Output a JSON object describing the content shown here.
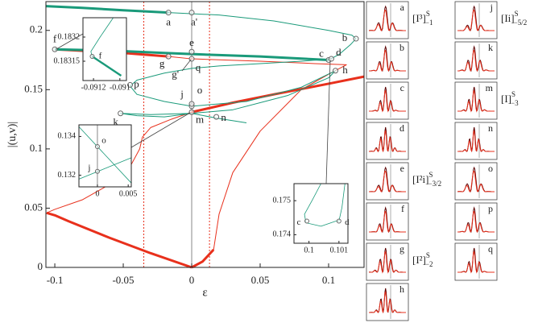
{
  "chart_data": [
    {
      "type": "line",
      "xlabel": "ε",
      "ylabel": "|(u,v)|",
      "xlim": [
        -0.1065,
        0.1259
      ],
      "ylim": [
        0,
        0.2243
      ],
      "xticks": [
        -0.1,
        -0.05,
        0,
        0.05,
        0.1
      ],
      "yticks": [
        0,
        0.05,
        0.1,
        0.15,
        0.2
      ],
      "vlines": [
        {
          "x": -0.035,
          "color": "#e8301c",
          "style": "dotted"
        },
        {
          "x": 0.013,
          "color": "#e8301c",
          "style": "dotted"
        },
        {
          "x": 0,
          "color": "#888888",
          "style": "solid"
        }
      ],
      "series": [
        {
          "color": "#e8301c",
          "linewidth": 3,
          "x": [
            0,
            -0.03,
            -0.06,
            -0.09,
            -0.1,
            -0.106
          ],
          "values": [
            0,
            0.012,
            0.025,
            0.039,
            0.044,
            0.046
          ]
        },
        {
          "color": "#e8301c",
          "linewidth": 1,
          "x": [
            -0.106,
            -0.1,
            -0.08,
            -0.06,
            -0.045,
            -0.038,
            -0.036,
            -0.03,
            -0.015,
            0
          ],
          "values": [
            0.046,
            0.049,
            0.057,
            0.07,
            0.085,
            0.1,
            0.11,
            0.118,
            0.125,
            0.131
          ]
        },
        {
          "color": "#e8301c",
          "linewidth": 3,
          "x": [
            0,
            0.008,
            0.016
          ],
          "values": [
            0,
            0.005,
            0.015
          ]
        },
        {
          "color": "#e8301c",
          "linewidth": 1,
          "x": [
            0.016,
            0.02,
            0.03,
            0.05,
            0.08,
            0.1,
            0.113,
            0.09,
            0.05,
            0,
            -0.017
          ],
          "values": [
            0.015,
            0.045,
            0.08,
            0.115,
            0.15,
            0.163,
            0.171,
            0.172,
            0.174,
            0.176,
            0.178
          ]
        },
        {
          "color": "#e8301c",
          "linewidth": 3,
          "x": [
            -0.017,
            -0.05,
            -0.1
          ],
          "values": [
            0.178,
            0.181,
            0.184
          ]
        },
        {
          "color": "#e8301c",
          "linewidth": 3,
          "x": [
            0.1259,
            0.1,
            0.06,
            0.03,
            0
          ],
          "values": [
            0.161,
            0.155,
            0.146,
            0.139,
            0.131
          ]
        },
        {
          "color": "#1a9a7a",
          "linewidth": 3,
          "x": [
            -0.1065,
            -0.08,
            -0.05,
            -0.017
          ],
          "values": [
            0.2205,
            0.219,
            0.217,
            0.215
          ]
        },
        {
          "color": "#1a9a7a",
          "linewidth": 1,
          "x": [
            -0.017,
            0.02,
            0.06,
            0.1,
            0.117,
            0.12,
            0.116,
            0.108,
            0.1
          ],
          "values": [
            0.215,
            0.213,
            0.208,
            0.2,
            0.196,
            0.193,
            0.188,
            0.18,
            0.175
          ]
        },
        {
          "color": "#1a9a7a",
          "linewidth": 3,
          "x": [
            -0.1,
            -0.06,
            -0.02,
            0,
            0.05,
            0.1
          ],
          "values": [
            0.184,
            0.183,
            0.181,
            0.18,
            0.178,
            0.175
          ]
        },
        {
          "color": "#1a9a7a",
          "linewidth": 1,
          "x": [
            0.102,
            0.08,
            0.05,
            0.02,
            0,
            -0.02,
            -0.04,
            -0.045,
            -0.04,
            -0.02,
            0,
            0.04,
            0.08,
            0.105,
            0.1,
            0.07,
            0.03,
            0,
            -0.03,
            -0.052,
            -0.04,
            -0.02,
            0,
            0.018,
            0.04
          ],
          "values": [
            0.176,
            0.174,
            0.172,
            0.17,
            0.168,
            0.164,
            0.158,
            0.153,
            0.146,
            0.14,
            0.136,
            0.14,
            0.152,
            0.166,
            0.16,
            0.145,
            0.133,
            0.13,
            0.129,
            0.13,
            0.128,
            0.127,
            0.13,
            0.126,
            0.122
          ]
        }
      ],
      "points": [
        {
          "label": "a",
          "x": -0.017,
          "y": 0.215
        },
        {
          "label": "a'",
          "x": 0,
          "y": 0.215
        },
        {
          "label": "b",
          "x": 0.12,
          "y": 0.193
        },
        {
          "label": "c",
          "x": 0.1,
          "y": 0.175
        },
        {
          "label": "d",
          "x": 0.102,
          "y": 0.176
        },
        {
          "label": "e",
          "x": 0,
          "y": 0.182
        },
        {
          "label": "f",
          "x": -0.1,
          "y": 0.184
        },
        {
          "label": "g",
          "x": -0.017,
          "y": 0.178
        },
        {
          "label": "q",
          "x": 0,
          "y": 0.176
        },
        {
          "label": "p",
          "x": -0.045,
          "y": 0.154
        },
        {
          "label": "h",
          "x": 0.105,
          "y": 0.166
        },
        {
          "label": "j",
          "x": 0,
          "y": 0.136
        },
        {
          "label": "o",
          "x": 0,
          "y": 0.138
        },
        {
          "label": "m",
          "x": 0,
          "y": 0.131
        },
        {
          "label": "k",
          "x": -0.052,
          "y": 0.13
        },
        {
          "label": "n",
          "x": 0.018,
          "y": 0.127
        }
      ],
      "annotations": [
        {
          "text": "g'",
          "x": -0.012,
          "y": 0.162
        }
      ]
    },
    {
      "type": "line",
      "xlim": [
        -0.09128,
        -0.09095
      ],
      "ylim": [
        0.18311,
        0.18324
      ],
      "xticks": [
        -0.0912,
        -0.091
      ],
      "yticks": [
        0.1832,
        0.18315
      ],
      "series": [
        {
          "color": "#1a9a7a",
          "linewidth": 1,
          "x": [
            -0.09105,
            -0.09115,
            -0.09122,
            -0.09121
          ],
          "values": [
            0.18324,
            0.1832,
            0.18317,
            0.18316
          ]
        },
        {
          "color": "#1a9a7a",
          "linewidth": 3,
          "x": [
            -0.09121,
            -0.0911,
            -0.09099
          ],
          "values": [
            0.18316,
            0.18314,
            0.18312
          ]
        }
      ],
      "points": [
        {
          "label": "f",
          "x": -0.09121,
          "y": 0.18316
        }
      ]
    },
    {
      "type": "line",
      "xlim": [
        -0.003,
        0.0055
      ],
      "ylim": [
        0.1314,
        0.1346
      ],
      "xticks": [
        0,
        0.005
      ],
      "yticks": [
        0.134,
        0.132
      ],
      "vlines": [
        {
          "x": 0,
          "color": "#888888",
          "style": "solid"
        }
      ],
      "series": [
        {
          "color": "#1a9a7a",
          "linewidth": 1,
          "x": [
            -0.003,
            0.0055
          ],
          "values": [
            0.1345,
            0.1316
          ]
        },
        {
          "color": "#1a9a7a",
          "linewidth": 1,
          "x": [
            -0.003,
            0.0055
          ],
          "values": [
            0.1318,
            0.1329
          ]
        }
      ],
      "points": [
        {
          "label": "j",
          "x": 0,
          "y": 0.1322
        },
        {
          "label": "o",
          "x": 0,
          "y": 0.13348
        }
      ]
    },
    {
      "type": "line",
      "xlim": [
        0.0995,
        0.1013
      ],
      "ylim": [
        0.17375,
        0.1755
      ],
      "xticks": [
        0.1,
        0.101
      ],
      "yticks": [
        0.175,
        0.174
      ],
      "series": [
        {
          "color": "#1a9a7a",
          "linewidth": 1,
          "x": [
            0.1004,
            0.1001,
            0.09985,
            0.0999,
            0.1004,
            0.1009,
            0.101
          ],
          "values": [
            0.1755,
            0.175,
            0.1746,
            0.17435,
            0.17425,
            0.1744,
            0.1744
          ]
        },
        {
          "color": "#1a9a7a",
          "linewidth": 1,
          "x": [
            0.1012,
            0.1011,
            0.101
          ],
          "values": [
            0.1755,
            0.1748,
            0.1744
          ]
        }
      ],
      "points": [
        {
          "label": "c",
          "x": 0.09993,
          "y": 0.1744
        },
        {
          "label": "d",
          "x": 0.101,
          "y": 0.1744
        }
      ]
    }
  ],
  "profile_panels": [
    {
      "letter": "a",
      "tag": {
        "base": "[I³]",
        "sup": "S",
        "sub": "−1"
      }
    },
    {
      "letter": "b"
    },
    {
      "letter": "c"
    },
    {
      "letter": "d"
    },
    {
      "letter": "e",
      "tag": {
        "base": "[I²i]",
        "sup": "S",
        "sub": "−3/2"
      }
    },
    {
      "letter": "f"
    },
    {
      "letter": "g",
      "tag": {
        "base": "[I²]",
        "sup": "S",
        "sub": "−2"
      }
    },
    {
      "letter": "h"
    },
    {
      "letter": "j",
      "tag": {
        "base": "[Ii]",
        "sup": "S",
        "sub": "−5/2"
      }
    },
    {
      "letter": "k"
    },
    {
      "letter": "m",
      "tag": {
        "base": "[I]",
        "sup": "S",
        "sub": "−3"
      }
    },
    {
      "letter": "n"
    },
    {
      "letter": "o"
    },
    {
      "letter": "p"
    },
    {
      "letter": "q"
    }
  ]
}
